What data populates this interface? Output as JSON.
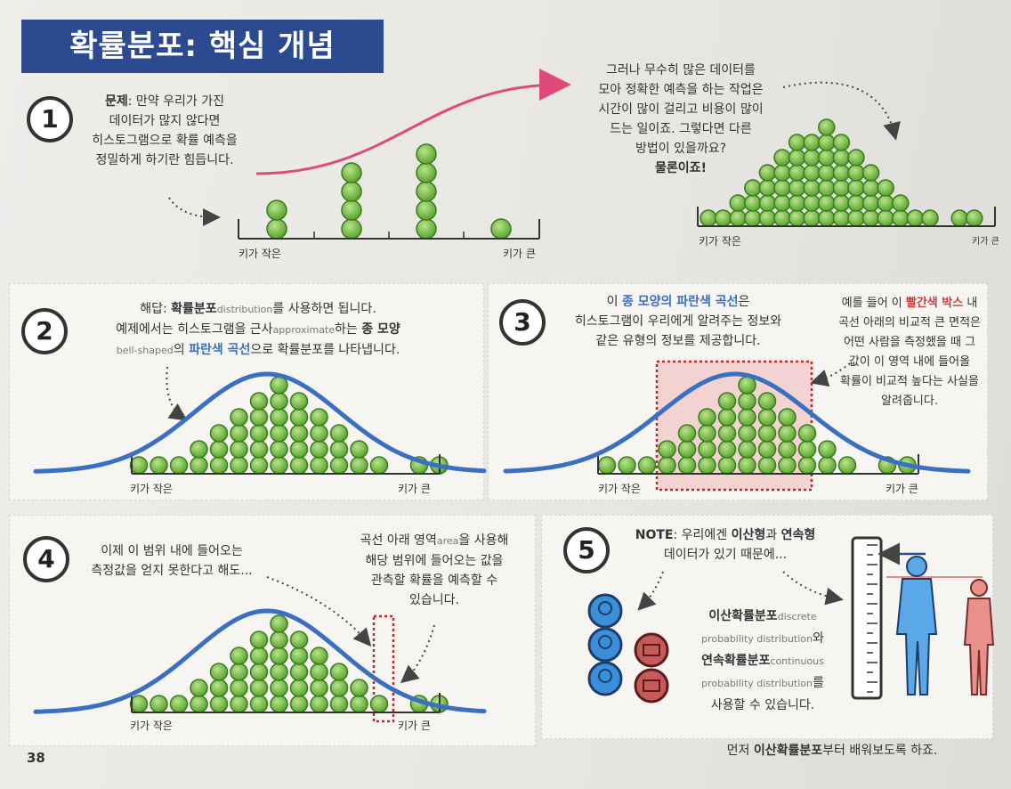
{
  "title": "확률분포: 핵심 개념",
  "page_number": "38",
  "section1": {
    "num": "1",
    "problem_label": "문제",
    "problem_lines": [
      ": 만약 우리가 가진",
      "데이터가 많지 않다면",
      "히스토그램으로 확률 예측을",
      "정밀하게 하기란 힘듭니다."
    ],
    "right_lines": [
      "그러나 무수히 많은 데이터를",
      "모아 정확한 예측을 하는 작업은",
      "시간이 많이 걸리고 비용이 많이",
      "드는 일이죠. 그렇다면 다른",
      "방법이 있을까요?"
    ],
    "right_answer": "물론이죠!",
    "left_short": "키가 작은",
    "left_tall": "키가 큰",
    "right_short": "키가 작은",
    "right_tall": "키가 큰"
  },
  "section2": {
    "num": "2",
    "line1_a": "해답: ",
    "line1_b": "확률분포",
    "line1_c": "distribution",
    "line1_d": "를 사용하면 됩니다.",
    "line2_a": "예제에서는 히스토그램을 근사",
    "line2_b": "approximate",
    "line2_c": "하는 ",
    "line2_d": "종 모양",
    "line3_a": "bell-shaped",
    "line3_b": "의 ",
    "line3_c": "파란색 곡선",
    "line3_d": "으로 확률분포를 나타냅니다.",
    "short": "키가 작은",
    "tall": "키가 큰"
  },
  "section3": {
    "num": "3",
    "line1_a": "이 ",
    "line1_b": "종 모양의 파란색 곡선",
    "line1_c": "은",
    "line2": "히스토그램이 우리에게 알려주는 정보와",
    "line3": "같은 유형의 정보를 제공합니다.",
    "side1_a": "예를 들어 이 ",
    "side1_b": "빨간색 박스",
    "side1_c": " 내",
    "side_lines": [
      "곡선 아래의 비교적 큰 면적은",
      "어떤 사람을 측정했을 때 그",
      "값이 이 영역 내에 들어올",
      "확률이 비교적 높다는 사실을",
      "알려줍니다."
    ],
    "short": "키가 작은",
    "tall": "키가 큰"
  },
  "section4": {
    "num": "4",
    "left_lines": [
      "이제 이 범위 내에 들어오는",
      "측정값을 얻지 못한다고 해도..."
    ],
    "r1_a": "곡선 아래 영역",
    "r1_b": "area",
    "r1_c": "을 사용해",
    "right_lines": [
      "해당 범위에 들어오는 값을",
      "관측할 확률을 예측할 수",
      "있습니다."
    ],
    "short": "키가 작은",
    "tall": "키가 큰"
  },
  "section5": {
    "num": "5",
    "note_a": "NOTE",
    "note_b": ": 우리에겐 ",
    "note_c": "이산형",
    "note_d": "과 ",
    "note_e": "연속형",
    "note_line2": "데이터가 있기 때문에...",
    "d1": "이산확률분포",
    "d1_en": "discrete",
    "d2_en": "probability distribution",
    "d2_suffix": "와",
    "c1": "연속확률분포",
    "c1_en": "continuous",
    "c2_en": "probability distribution",
    "c2_suffix": "를",
    "end_line": "사용할 수 있습니다."
  },
  "footer_a": "먼저 ",
  "footer_b": "이산확률분포",
  "footer_c": "부터 배워보도록 하죠.",
  "colors": {
    "banner": "#2c4a8f",
    "curve": "#3a6fc1",
    "ball": "#7cc24a",
    "accent_red": "#d23a3a",
    "arrow_pink": "#e04a7a"
  }
}
